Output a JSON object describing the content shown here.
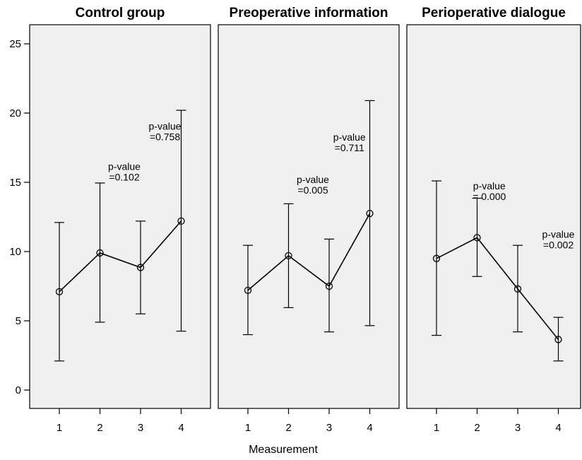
{
  "chart_data": {
    "type": "line",
    "xlabel": "Measurement",
    "ylabel": "",
    "ylim": [
      0,
      26
    ],
    "yticks": [
      0,
      5,
      10,
      15,
      20,
      25
    ],
    "grid": false,
    "legend": "none",
    "panels": [
      {
        "title": "Control group",
        "x": [
          1,
          2,
          3,
          4
        ],
        "mean": [
          7.1,
          9.9,
          8.85,
          12.2
        ],
        "lower": [
          2.1,
          4.9,
          5.5,
          4.25
        ],
        "upper": [
          12.1,
          14.95,
          12.2,
          20.2
        ],
        "annotations": [
          {
            "line1": "p-value",
            "line2": "=0.102",
            "x": 2.6,
            "y": 15.9
          },
          {
            "line1": "p-value",
            "line2": "=0.758",
            "x": 3.6,
            "y": 18.8
          }
        ]
      },
      {
        "title": "Preoperative information",
        "x": [
          1,
          2,
          3,
          4
        ],
        "mean": [
          7.2,
          9.7,
          7.5,
          12.75
        ],
        "lower": [
          4.0,
          5.95,
          4.2,
          4.65
        ],
        "upper": [
          10.45,
          13.45,
          10.9,
          20.9
        ],
        "annotations": [
          {
            "line1": "p-value",
            "line2": "=0.005",
            "x": 2.6,
            "y": 14.95
          },
          {
            "line1": "p-value",
            "line2": "=0.711",
            "x": 3.5,
            "y": 18.0
          }
        ]
      },
      {
        "title": "Perioperative dialogue",
        "x": [
          1,
          2,
          3,
          4
        ],
        "mean": [
          9.5,
          11.0,
          7.3,
          3.65
        ],
        "lower": [
          3.95,
          8.2,
          4.2,
          2.1
        ],
        "upper": [
          15.1,
          13.85,
          10.45,
          5.25
        ],
        "annotations": [
          {
            "line1": "p-value",
            "line2": "= 0.000",
            "x": 2.3,
            "y": 14.5
          },
          {
            "line1": "p-value",
            "line2": "=0.002",
            "x": 4.0,
            "y": 11.0
          }
        ]
      }
    ]
  }
}
